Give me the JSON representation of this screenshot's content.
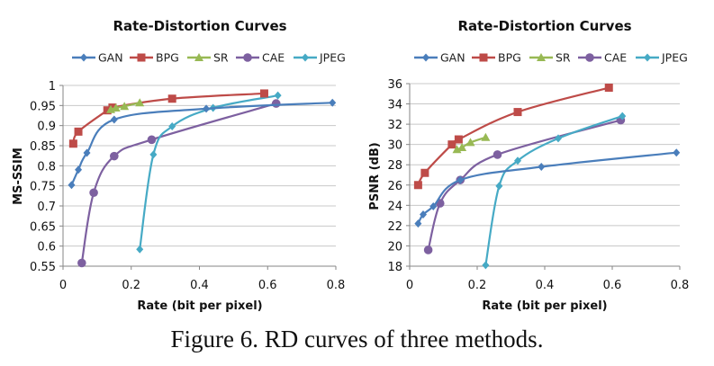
{
  "caption": "Figure 6. RD curves of three methods.",
  "colors": {
    "GAN": "#4a7ebb",
    "BPG": "#be4b48",
    "SR": "#98b954",
    "CAE": "#7d60a0",
    "JPEG": "#46aac5",
    "grid": "#c8c8c8",
    "axis": "#868686"
  },
  "chart_data": [
    {
      "type": "line",
      "title": "Rate-Distortion Curves",
      "xlabel": "Rate (bit per pixel)",
      "ylabel": "MS-SSIM",
      "xlim": [
        0,
        0.8
      ],
      "ylim": [
        0.55,
        1
      ],
      "xticks": [
        0,
        0.2,
        0.4,
        0.6,
        0.8
      ],
      "xtick_labels": [
        "0",
        "0.2",
        "0.4",
        "0.6",
        "0.8"
      ],
      "yticks": [
        0.55,
        0.6,
        0.65,
        0.7,
        0.75,
        0.8,
        0.85,
        0.9,
        0.95,
        1
      ],
      "ytick_labels": [
        "0.55",
        "0.6",
        "0.65",
        "0.7",
        "0.75",
        "0.8",
        "0.85",
        "0.9",
        "0.95",
        "1"
      ],
      "grid": "horizontal",
      "legend": "top",
      "series": [
        {
          "name": "GAN",
          "marker": "diamond",
          "x": [
            0.025,
            0.045,
            0.07,
            0.15,
            0.42,
            0.79
          ],
          "y": [
            0.752,
            0.79,
            0.832,
            0.915,
            0.942,
            0.957
          ]
        },
        {
          "name": "BPG",
          "marker": "square",
          "x": [
            0.03,
            0.045,
            0.13,
            0.145,
            0.32,
            0.59
          ],
          "y": [
            0.855,
            0.885,
            0.938,
            0.945,
            0.967,
            0.98
          ]
        },
        {
          "name": "SR",
          "marker": "triangle",
          "x": [
            0.14,
            0.155,
            0.18,
            0.225
          ],
          "y": [
            0.94,
            0.944,
            0.948,
            0.957
          ]
        },
        {
          "name": "CAE",
          "marker": "circle",
          "x": [
            0.055,
            0.09,
            0.15,
            0.26,
            0.625
          ],
          "y": [
            0.558,
            0.733,
            0.824,
            0.865,
            0.955
          ]
        },
        {
          "name": "JPEG",
          "marker": "diamond",
          "x": [
            0.225,
            0.265,
            0.32,
            0.44,
            0.63
          ],
          "y": [
            0.592,
            0.828,
            0.898,
            0.944,
            0.975
          ]
        }
      ]
    },
    {
      "type": "line",
      "title": "Rate-Distortion Curves",
      "xlabel": "Rate (bit per pixel)",
      "ylabel": "PSNR (dB)",
      "xlim": [
        0,
        0.8
      ],
      "ylim": [
        18,
        36
      ],
      "xticks": [
        0,
        0.2,
        0.4,
        0.6,
        0.8
      ],
      "xtick_labels": [
        "0",
        "0.2",
        "0.4",
        "0.6",
        "0.8"
      ],
      "yticks": [
        18,
        20,
        22,
        24,
        26,
        28,
        30,
        32,
        34,
        36
      ],
      "ytick_labels": [
        "18",
        "20",
        "22",
        "24",
        "26",
        "28",
        "30",
        "32",
        "34",
        "36"
      ],
      "grid": "horizontal",
      "legend": "top",
      "series": [
        {
          "name": "GAN",
          "marker": "diamond",
          "x": [
            0.025,
            0.04,
            0.07,
            0.15,
            0.39,
            0.79
          ],
          "y": [
            22.2,
            23.1,
            23.9,
            26.5,
            27.8,
            29.2
          ]
        },
        {
          "name": "BPG",
          "marker": "square",
          "x": [
            0.025,
            0.045,
            0.125,
            0.145,
            0.32,
            0.59
          ],
          "y": [
            26.0,
            27.2,
            30.0,
            30.5,
            33.2,
            35.6
          ]
        },
        {
          "name": "SR",
          "marker": "triangle",
          "x": [
            0.14,
            0.155,
            0.18,
            0.225
          ],
          "y": [
            29.5,
            29.7,
            30.2,
            30.7
          ]
        },
        {
          "name": "CAE",
          "marker": "circle",
          "x": [
            0.055,
            0.09,
            0.15,
            0.26,
            0.625
          ],
          "y": [
            19.6,
            24.2,
            26.5,
            29.0,
            32.4
          ]
        },
        {
          "name": "JPEG",
          "marker": "diamond",
          "x": [
            0.225,
            0.265,
            0.32,
            0.44,
            0.63
          ],
          "y": [
            18.1,
            25.9,
            28.4,
            30.6,
            32.8
          ]
        }
      ]
    }
  ]
}
